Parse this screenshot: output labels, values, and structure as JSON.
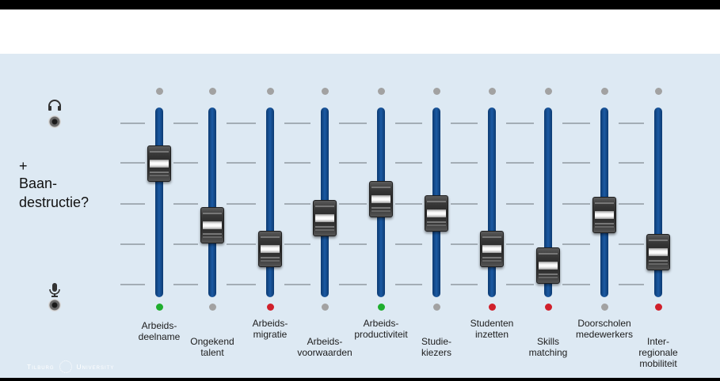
{
  "side": {
    "plus": "+",
    "question": "Baan-\ndestructie?"
  },
  "icons": {
    "top": "headphones-icon",
    "bottom": "microphone-icon"
  },
  "faders": [
    {
      "label": "Arbeids-\ndeelname",
      "level": 0.74,
      "status": "green"
    },
    {
      "label": "Ongekend\ntalent",
      "level": 0.36,
      "status": "grey"
    },
    {
      "label": "Arbeids-\nmigratie",
      "level": 0.21,
      "status": "red"
    },
    {
      "label": "Arbeids-\nvoorwaarden",
      "level": 0.4,
      "status": "grey"
    },
    {
      "label": "Arbeids-\nproductiviteit",
      "level": 0.52,
      "status": "green"
    },
    {
      "label": "Studie-\nkiezers",
      "level": 0.43,
      "status": "grey"
    },
    {
      "label": "Studenten\ninzetten",
      "level": 0.21,
      "status": "red"
    },
    {
      "label": "Skills\nmatching",
      "level": 0.11,
      "status": "red"
    },
    {
      "label": "Doorscholen\nmedewerkers",
      "level": 0.42,
      "status": "grey"
    },
    {
      "label": "Inter-\nregionale\nmobiliteit",
      "level": 0.19,
      "status": "red"
    }
  ],
  "colors": {
    "green": "#1fae2e",
    "red": "#d0202b",
    "grey": "#a2a2a2",
    "track": "#0c3a72"
  },
  "logo": {
    "left": "Tilburg",
    "right": "University"
  }
}
